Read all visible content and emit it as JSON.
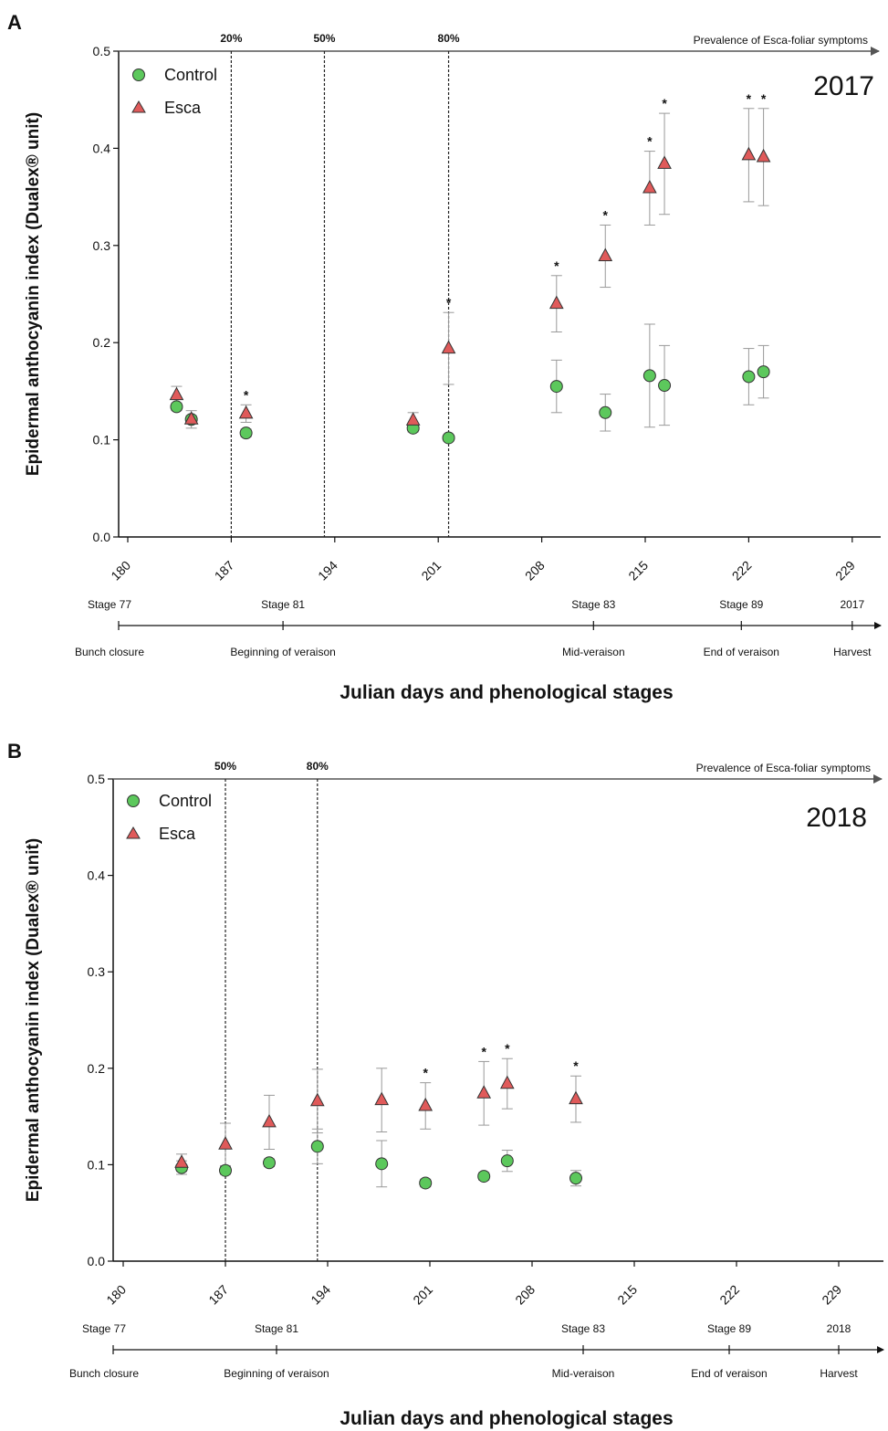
{
  "chart_data": [
    {
      "type": "scatter",
      "panel": "A",
      "ylabel": "Epidermal anthocyanin index (Dualex® unit)",
      "xlabel": "Julian days and phenological stages",
      "year": "2017",
      "prevalence_label": "Prevalence of Esca-foliar symptoms",
      "xlim": [
        179,
        230
      ],
      "ylim": [
        0.0,
        0.5
      ],
      "x_ticks": [
        "180",
        "187",
        "194",
        "201",
        "208",
        "215",
        "222",
        "229"
      ],
      "y_ticks": [
        "0.0",
        "0.1",
        "0.2",
        "0.3",
        "0.4",
        "0.5"
      ],
      "legend": {
        "position": "top-left",
        "entries": [
          "Control",
          "Esca"
        ]
      },
      "prevalence_lines": [
        {
          "x": 187.0,
          "label": "20%"
        },
        {
          "x": 193.3,
          "label": "50%"
        },
        {
          "x": 201.7,
          "label": "80%"
        }
      ],
      "series": [
        {
          "name": "Control",
          "color": "#5cc85c",
          "marker": "circle",
          "x": [
            183.3,
            184.3,
            188.0,
            199.3,
            201.7,
            209.0,
            212.3,
            215.3,
            216.3,
            222.0,
            223.0
          ],
          "y": [
            0.134,
            0.121,
            0.107,
            0.112,
            0.102,
            0.155,
            0.128,
            0.166,
            0.156,
            0.165,
            0.17
          ],
          "err": [
            0.004,
            0.004,
            0.004,
            0.004,
            0.003,
            0.027,
            0.019,
            0.053,
            0.041,
            0.029,
            0.027
          ]
        },
        {
          "name": "Esca",
          "color": "#e05a5a",
          "marker": "triangle",
          "x": [
            183.3,
            184.3,
            188.0,
            199.3,
            201.7,
            209.0,
            212.3,
            215.3,
            216.3,
            222.0,
            223.0
          ],
          "y": [
            0.146,
            0.121,
            0.127,
            0.12,
            0.194,
            0.24,
            0.289,
            0.359,
            0.384,
            0.393,
            0.391
          ],
          "err": [
            0.009,
            0.009,
            0.009,
            0.008,
            0.037,
            0.029,
            0.032,
            0.038,
            0.052,
            0.048,
            0.05
          ],
          "significant": [
            false,
            false,
            true,
            false,
            true,
            true,
            true,
            true,
            true,
            true,
            true
          ]
        }
      ],
      "phenology": {
        "stages": [
          {
            "x": 180.0,
            "stage": "Stage 77",
            "event": "Bunch closure"
          },
          {
            "x": 190.5,
            "stage": "Stage 81",
            "event": "Beginning of veraison"
          },
          {
            "x": 211.5,
            "stage": "Stage 83",
            "event": "Mid-veraison"
          },
          {
            "x": 221.5,
            "stage": "Stage 89",
            "event": "End of veraison"
          },
          {
            "x": 229.0,
            "stage": "2017",
            "event": "Harvest"
          }
        ]
      },
      "significance_marker": "*"
    },
    {
      "type": "scatter",
      "panel": "B",
      "ylabel": "Epidermal anthocyanin index (Dualex® unit)",
      "xlabel": "Julian days and phenological stages",
      "year": "2018",
      "prevalence_label": "Prevalence of Esca-foliar symptoms",
      "xlim": [
        179,
        230
      ],
      "ylim": [
        0.0,
        0.5
      ],
      "x_ticks": [
        "180",
        "187",
        "194",
        "201",
        "208",
        "215",
        "222",
        "229"
      ],
      "y_ticks": [
        "0.0",
        "0.1",
        "0.2",
        "0.3",
        "0.4",
        "0.5"
      ],
      "legend": {
        "position": "top-left",
        "entries": [
          "Control",
          "Esca"
        ]
      },
      "prevalence_lines": [
        {
          "x": 187.0,
          "label": "50%"
        },
        {
          "x": 193.3,
          "label": "80%"
        }
      ],
      "series": [
        {
          "name": "Control",
          "color": "#5cc85c",
          "marker": "circle",
          "x": [
            184.0,
            187.0,
            190.0,
            193.3,
            197.7,
            200.7,
            204.7,
            206.3,
            211.0
          ],
          "y": [
            0.097,
            0.094,
            0.102,
            0.119,
            0.101,
            0.081,
            0.088,
            0.104,
            0.086
          ],
          "err": [
            0.007,
            0.004,
            0.004,
            0.018,
            0.024,
            0.004,
            0.004,
            0.011,
            0.008
          ]
        },
        {
          "name": "Esca",
          "color": "#e05a5a",
          "marker": "triangle",
          "x": [
            184.0,
            187.0,
            190.0,
            193.3,
            197.7,
            200.7,
            204.7,
            206.3,
            211.0
          ],
          "y": [
            0.102,
            0.121,
            0.144,
            0.166,
            0.167,
            0.161,
            0.174,
            0.184,
            0.168
          ],
          "err": [
            0.009,
            0.022,
            0.028,
            0.033,
            0.033,
            0.024,
            0.033,
            0.026,
            0.024
          ],
          "significant": [
            false,
            false,
            false,
            false,
            false,
            true,
            true,
            true,
            true
          ]
        }
      ],
      "phenology": {
        "stages": [
          {
            "x": 180.0,
            "stage": "Stage 77",
            "event": "Bunch closure"
          },
          {
            "x": 190.5,
            "stage": "Stage 81",
            "event": "Beginning of veraison"
          },
          {
            "x": 211.5,
            "stage": "Stage 83",
            "event": "Mid-veraison"
          },
          {
            "x": 221.5,
            "stage": "Stage 89",
            "event": "End of veraison"
          },
          {
            "x": 229.0,
            "stage": "2018",
            "event": "Harvest"
          }
        ]
      },
      "significance_marker": "*"
    }
  ]
}
